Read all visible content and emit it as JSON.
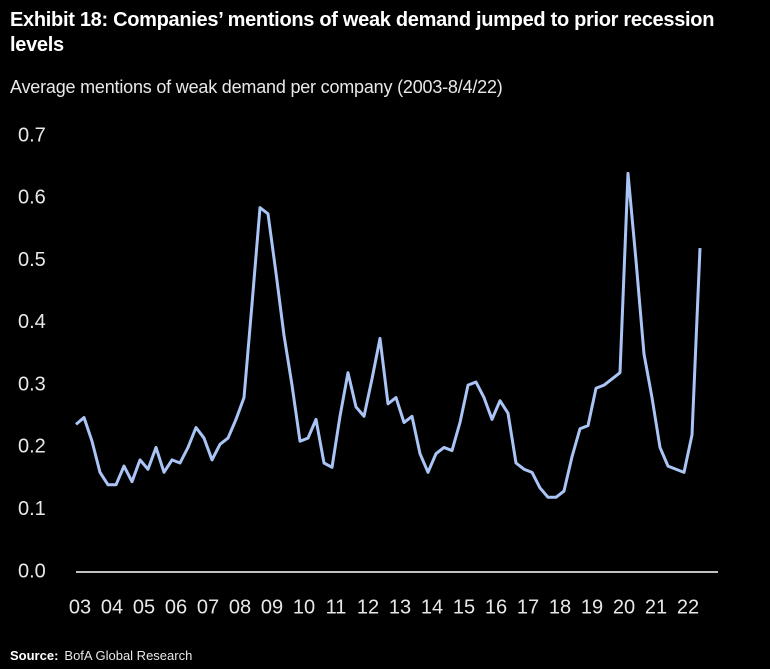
{
  "chart_data": {
    "type": "line",
    "title": "Exhibit 18: Companies’ mentions of weak demand jumped to prior recession levels",
    "subtitle": "Average mentions of weak demand per company (2003-8/4/22)",
    "source_label": "Source:",
    "source": "BofA Global Research",
    "categories": [
      "03",
      null,
      null,
      null,
      "04",
      null,
      null,
      null,
      "05",
      null,
      null,
      null,
      "06",
      null,
      null,
      null,
      "07",
      null,
      null,
      null,
      "08",
      null,
      null,
      null,
      "09",
      null,
      null,
      null,
      "10",
      null,
      null,
      null,
      "11",
      null,
      null,
      null,
      "12",
      null,
      null,
      null,
      "13",
      null,
      null,
      null,
      "14",
      null,
      null,
      null,
      "15",
      null,
      null,
      null,
      "16",
      null,
      null,
      null,
      "17",
      null,
      null,
      null,
      "18",
      null,
      null,
      null,
      "19",
      null,
      null,
      null,
      "20",
      null,
      null,
      null,
      "21",
      null,
      null,
      null,
      "22",
      null,
      null
    ],
    "values": [
      0.237,
      0.248,
      0.21,
      0.16,
      0.14,
      0.14,
      0.17,
      0.145,
      0.18,
      0.165,
      0.2,
      0.16,
      0.18,
      0.175,
      0.2,
      0.232,
      0.215,
      0.18,
      0.205,
      0.215,
      0.245,
      0.28,
      0.43,
      0.585,
      0.575,
      0.48,
      0.38,
      0.3,
      0.21,
      0.215,
      0.245,
      0.175,
      0.168,
      0.25,
      0.32,
      0.265,
      0.25,
      0.31,
      0.375,
      0.27,
      0.28,
      0.24,
      0.25,
      0.19,
      0.16,
      0.19,
      0.2,
      0.195,
      0.24,
      0.3,
      0.305,
      0.28,
      0.245,
      0.275,
      0.255,
      0.175,
      0.165,
      0.16,
      0.135,
      0.12,
      0.12,
      0.13,
      0.185,
      0.23,
      0.235,
      0.295,
      0.3,
      0.31,
      0.32,
      0.64,
      0.5,
      0.35,
      0.28,
      0.2,
      0.17,
      0.165,
      0.16,
      0.22,
      0.52
    ],
    "color": "#a9c4f5",
    "ylim": [
      0,
      0.7
    ],
    "yticks": [
      {
        "value": 0,
        "label": "0.0"
      },
      0.1,
      0.2,
      0.3,
      0.4,
      0.5,
      0.6,
      0.7
    ],
    "grid": false
  }
}
